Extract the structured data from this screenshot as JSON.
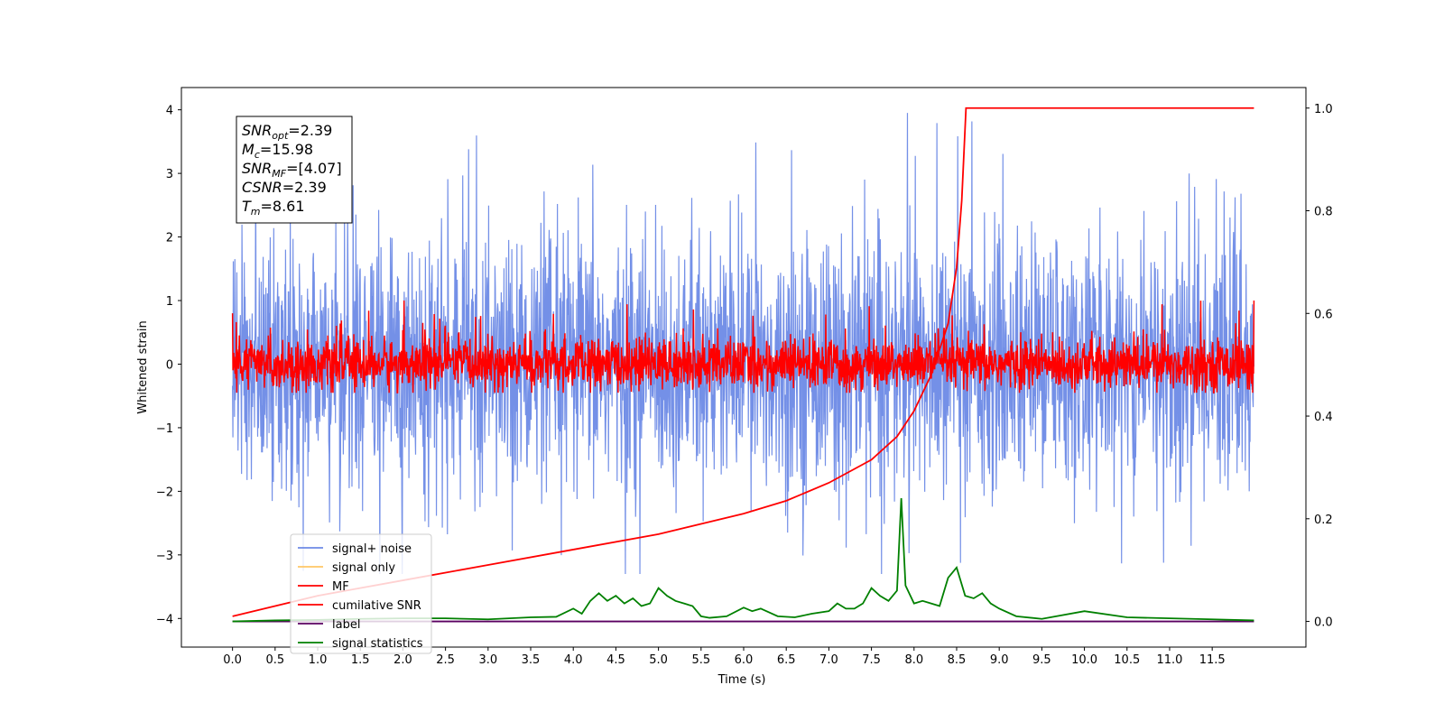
{
  "chart_data": {
    "type": "line",
    "xlabel": "Time (s)",
    "ylabel": "Whitened strain",
    "xlim": [
      -0.6,
      12.6
    ],
    "ylim": [
      -4.45,
      4.35
    ],
    "ylim_right": [
      -0.05,
      1.04
    ],
    "x_ticks": [
      "0.0",
      "0.5",
      "1.0",
      "1.5",
      "2.0",
      "2.5",
      "3.0",
      "3.5",
      "4.0",
      "4.5",
      "5.0",
      "5.5",
      "6.0",
      "6.5",
      "7.0",
      "7.5",
      "8.0",
      "8.5",
      "9.0",
      "9.5",
      "10.0",
      "10.5",
      "11.0",
      "11.5"
    ],
    "y_ticks_left": [
      "4",
      "3",
      "2",
      "1",
      "0",
      "−1",
      "−2",
      "−3",
      "−4"
    ],
    "y_ticks_right": [
      "1.0",
      "0.8",
      "0.6",
      "0.4",
      "0.2",
      "0.0"
    ],
    "legend_position": "lower-left",
    "info_box": [
      {
        "base": "SNR",
        "sub": "opt",
        "value": "=2.39"
      },
      {
        "base": "M",
        "sub": "c",
        "value": "=15.98"
      },
      {
        "base": "SNR",
        "sub": "MF",
        "value": "=[4.07]"
      },
      {
        "base": "CSNR",
        "sub": "",
        "value": "=2.39"
      },
      {
        "base": "T",
        "sub": "m",
        "value": "=8.61"
      }
    ],
    "series": [
      {
        "name": "signal+ noise",
        "color": "#6d8ae6",
        "axis": "left",
        "description_range": [
          -3.3,
          3.95
        ]
      },
      {
        "name": "signal only",
        "color": "#ffc766",
        "axis": "left"
      },
      {
        "name": "MF",
        "color": "#ff0000",
        "axis": "left",
        "description_range": [
          -0.45,
          1.0
        ]
      },
      {
        "name": "cumilative SNR",
        "color": "#ff0000",
        "axis": "right",
        "x": [
          0.0,
          0.5,
          1.0,
          2.0,
          3.0,
          4.0,
          5.0,
          6.0,
          6.5,
          7.0,
          7.5,
          7.8,
          8.0,
          8.2,
          8.4,
          8.5,
          8.56,
          8.61,
          11.99
        ],
        "y": [
          0.01,
          0.03,
          0.05,
          0.08,
          0.11,
          0.14,
          0.17,
          0.21,
          0.235,
          0.27,
          0.315,
          0.36,
          0.41,
          0.48,
          0.58,
          0.69,
          0.82,
          1.0,
          1.0
        ]
      },
      {
        "name": "label",
        "color": "#5a0060",
        "axis": "right",
        "x": [
          0.0,
          11.99
        ],
        "y": [
          0.0,
          0.0
        ]
      },
      {
        "name": "signal statistics",
        "color": "#008000",
        "axis": "right",
        "x": [
          0.0,
          0.5,
          1.0,
          1.5,
          2.0,
          2.5,
          3.0,
          3.5,
          3.8,
          4.0,
          4.1,
          4.2,
          4.3,
          4.4,
          4.5,
          4.6,
          4.7,
          4.8,
          4.9,
          5.0,
          5.1,
          5.2,
          5.3,
          5.4,
          5.5,
          5.6,
          5.8,
          6.0,
          6.1,
          6.2,
          6.4,
          6.6,
          6.8,
          7.0,
          7.1,
          7.2,
          7.3,
          7.4,
          7.5,
          7.6,
          7.7,
          7.8,
          7.85,
          7.9,
          8.0,
          8.1,
          8.2,
          8.3,
          8.4,
          8.5,
          8.6,
          8.7,
          8.8,
          8.9,
          9.0,
          9.2,
          9.5,
          10.0,
          10.5,
          11.0,
          11.5,
          11.99
        ],
        "y": [
          0.0,
          0.002,
          0.003,
          0.005,
          0.006,
          0.006,
          0.004,
          0.008,
          0.009,
          0.025,
          0.015,
          0.04,
          0.055,
          0.04,
          0.05,
          0.035,
          0.045,
          0.03,
          0.035,
          0.065,
          0.05,
          0.04,
          0.035,
          0.03,
          0.01,
          0.007,
          0.01,
          0.027,
          0.02,
          0.025,
          0.01,
          0.008,
          0.015,
          0.02,
          0.035,
          0.025,
          0.025,
          0.035,
          0.065,
          0.05,
          0.04,
          0.06,
          0.24,
          0.07,
          0.035,
          0.04,
          0.035,
          0.03,
          0.085,
          0.105,
          0.05,
          0.045,
          0.055,
          0.035,
          0.025,
          0.01,
          0.005,
          0.02,
          0.008,
          0.006,
          0.004,
          0.002
        ]
      }
    ]
  }
}
